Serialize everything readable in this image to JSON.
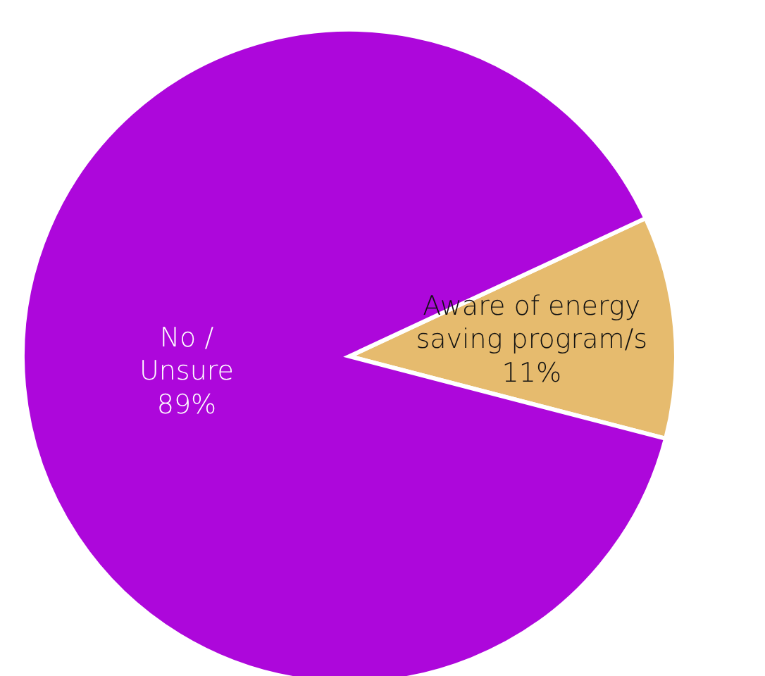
{
  "chart_data": {
    "type": "pie",
    "categories": [
      "Aware of energy saving program/s",
      "No / Unsure"
    ],
    "values": [
      11,
      89
    ],
    "value_labels": [
      "11%",
      "89%"
    ],
    "colors": [
      "#e6bb6e",
      "#ad07db"
    ]
  }
}
